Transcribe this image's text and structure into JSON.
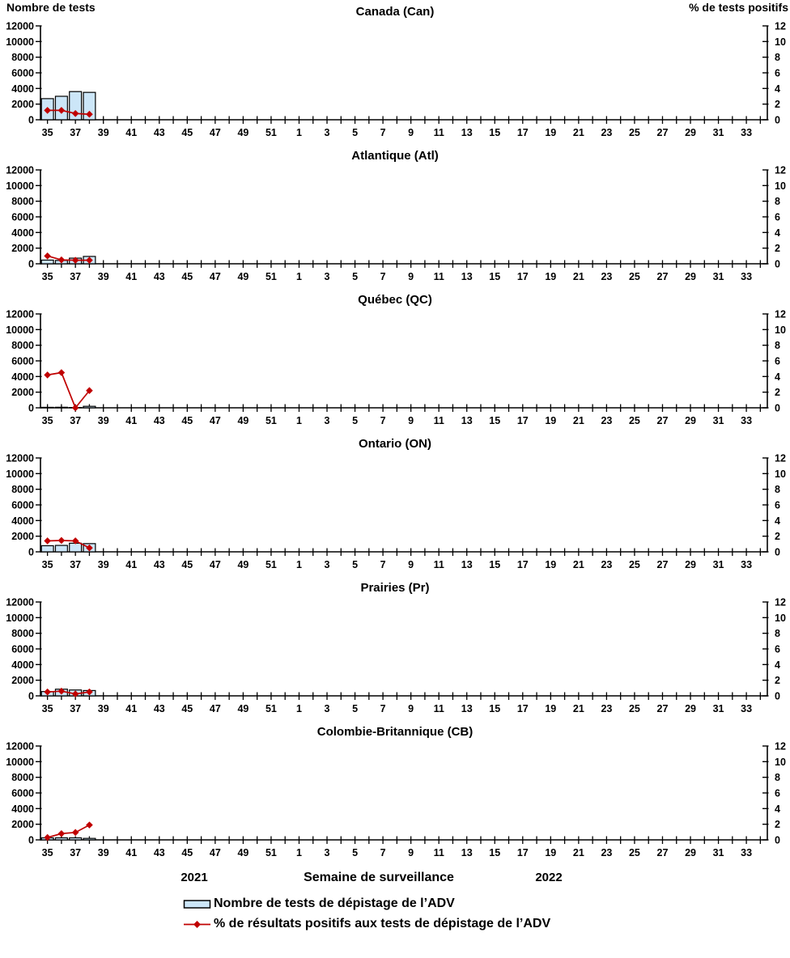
{
  "figure": {
    "left_axis_header": "Nombre de tests",
    "right_axis_header": "% de tests positifs",
    "footer": {
      "year_left": "2021",
      "xlabel": "Semaine de surveillance",
      "year_right": "2022"
    },
    "legend_items": [
      {
        "marker": "bar-swatch",
        "label": "Nombre de tests de dépistage de l’ADV"
      },
      {
        "marker": "line-diamond",
        "label": "% de résultats positifs aux tests de dépistage de l’ADV"
      }
    ],
    "colors": {
      "bar_fill": "#CCE6F8",
      "bar_stroke": "#000000",
      "line": "#C00000",
      "axis": "#000000"
    }
  },
  "chart_data": {
    "type": "bar",
    "subtype": "multi-panel dual-axis: bars (number of tests, left axis) + line with diamond markers (% positive, right axis)",
    "x_axis": {
      "description": "Surveillance weeks: 35-52 of 2021 followed by 1-34 of 2022; ticks every week, labels every second week",
      "tick_labels": [
        "35",
        "37",
        "39",
        "41",
        "43",
        "45",
        "47",
        "49",
        "51",
        "1",
        "3",
        "5",
        "7",
        "9",
        "11",
        "13",
        "15",
        "17",
        "19",
        "21",
        "23",
        "25",
        "27",
        "29",
        "31",
        "33"
      ],
      "n_weeks": 52,
      "first_week_label": 35,
      "weeks_in_2021": 18
    },
    "left_axis": {
      "title": "Nombre de tests",
      "range": [
        0,
        12000
      ],
      "ticks": [
        0,
        2000,
        4000,
        6000,
        8000,
        10000,
        12000
      ]
    },
    "right_axis": {
      "title": "% de tests positifs",
      "range": [
        0,
        12
      ],
      "ticks": [
        0,
        2,
        4,
        6,
        8,
        10,
        12
      ]
    },
    "panels": [
      {
        "title": "Canada (Can)",
        "weeks": [
          35,
          36,
          37,
          38
        ],
        "tests": [
          2700,
          3000,
          3600,
          3500
        ],
        "pct_positif": [
          1.2,
          1.2,
          0.8,
          0.7
        ]
      },
      {
        "title": "Atlantique (Atl)",
        "weeks": [
          35,
          36,
          37,
          38
        ],
        "tests": [
          470,
          430,
          720,
          940
        ],
        "pct_positif": [
          1.0,
          0.5,
          0.45,
          0.45
        ]
      },
      {
        "title": "Québec (QC)",
        "weeks": [
          35,
          36,
          37,
          38
        ],
        "tests": [
          60,
          70,
          40,
          190
        ],
        "pct_positif": [
          4.2,
          4.5,
          0.0,
          2.2
        ]
      },
      {
        "title": "Ontario (ON)",
        "weeks": [
          35,
          36,
          37,
          38
        ],
        "tests": [
          780,
          820,
          1100,
          1050
        ],
        "pct_positif": [
          1.4,
          1.45,
          1.4,
          0.5
        ]
      },
      {
        "title": "Prairies (Pr)",
        "weeks": [
          35,
          36,
          37,
          38
        ],
        "tests": [
          550,
          850,
          750,
          680
        ],
        "pct_positif": [
          0.5,
          0.6,
          0.25,
          0.5
        ]
      },
      {
        "title": "Colombie-Britannique (CB)",
        "weeks": [
          35,
          36,
          37,
          38
        ],
        "tests": [
          260,
          260,
          260,
          190
        ],
        "pct_positif": [
          0.3,
          0.8,
          0.95,
          1.9
        ]
      }
    ]
  }
}
